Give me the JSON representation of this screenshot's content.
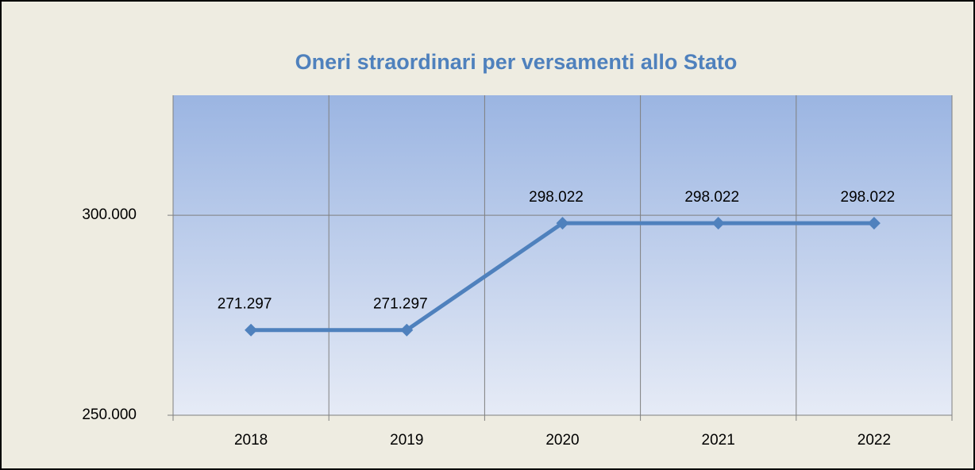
{
  "chart_data": {
    "type": "line",
    "title": "Oneri straordinari per versamenti allo Stato",
    "categories": [
      "2018",
      "2019",
      "2020",
      "2021",
      "2022"
    ],
    "series": [
      {
        "name": "Oneri straordinari",
        "color": "#4f81bd",
        "values": [
          271297,
          271297,
          298022,
          298022,
          298022
        ],
        "value_labels": [
          "271.297",
          "271.297",
          "298.022",
          "298.022",
          "298.022"
        ]
      }
    ],
    "ylim": [
      250000,
      330000
    ],
    "yticks": [
      {
        "value": 250000,
        "label": "250.000"
      },
      {
        "value": 300000,
        "label": "300.000"
      }
    ],
    "grid": true
  }
}
